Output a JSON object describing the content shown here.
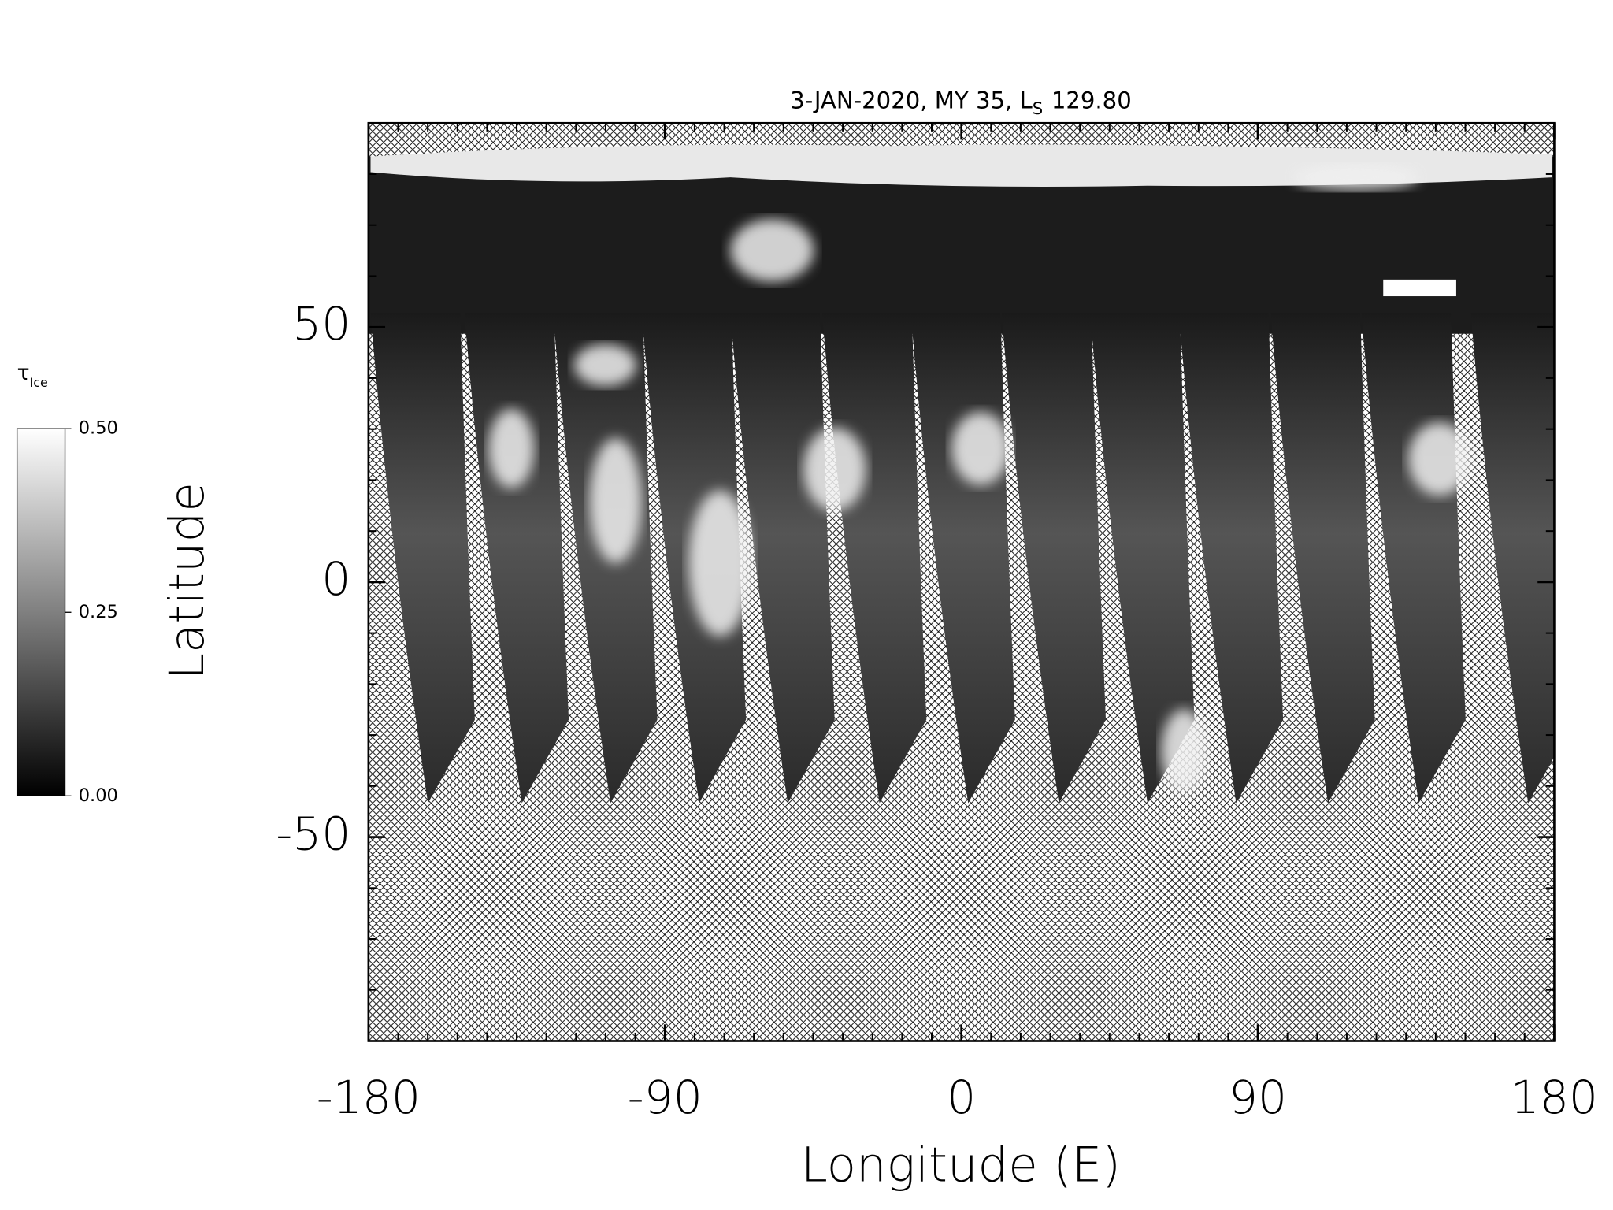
{
  "chart_data": {
    "type": "map",
    "title": [
      "3-JAN-2020, MY 35,  L",
      "S",
      "129.80"
    ],
    "xlabel": "Longitude (E)",
    "ylabel": "Latitude",
    "xlim": [
      -180,
      180
    ],
    "ylim": [
      -90,
      90
    ],
    "xticks": [
      -180,
      -90,
      0,
      90,
      180
    ],
    "yticks": [
      -50,
      0,
      50
    ],
    "xminorticks": [
      -171,
      -162,
      -153,
      -144,
      -135,
      -126,
      -117,
      -108,
      -99,
      -81,
      -72,
      -63,
      -54,
      -45,
      -36,
      -27,
      -18,
      -9,
      9,
      18,
      27,
      36,
      45,
      54,
      63,
      72,
      81,
      99,
      108,
      117,
      126,
      135,
      144,
      153,
      162,
      171
    ],
    "yminorticks": [
      -80,
      -70,
      -60,
      -40,
      -30,
      -20,
      -10,
      10,
      20,
      30,
      40,
      60,
      70,
      80
    ],
    "colorbar": {
      "label": [
        "τ",
        "Ice"
      ],
      "lim": [
        0,
        0.5
      ],
      "ticks": [
        {
          "value": 0,
          "label": "0.00"
        },
        {
          "value": 0.25,
          "label": "0.25"
        },
        {
          "value": 0.5,
          "label": "0.50"
        }
      ]
    }
  }
}
